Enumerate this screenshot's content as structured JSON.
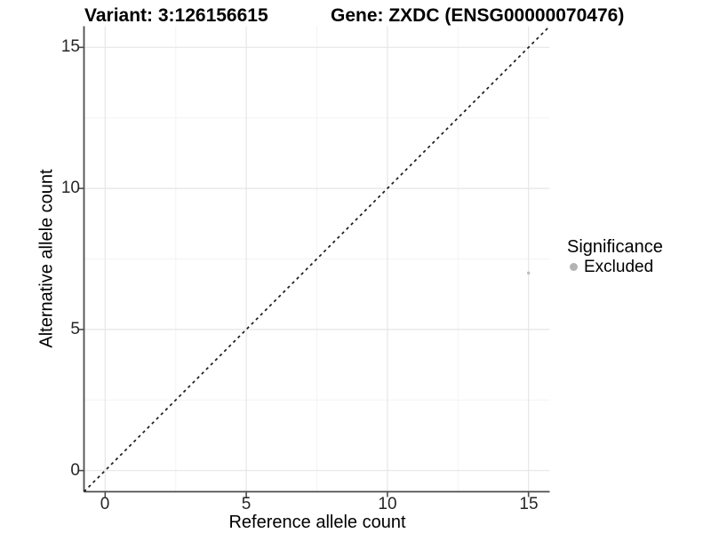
{
  "figure": {
    "title_left": "Variant: 3:126156615",
    "title_right": "Gene: ZXDC (ENSG00000070476)"
  },
  "chart_data": {
    "type": "scatter",
    "title": "Variant: 3:126156615   Gene: ZXDC (ENSG00000070476)",
    "xlabel": "Reference allele count",
    "ylabel": "Alternative allele count",
    "xticks": [
      "0",
      "5",
      "10",
      "15"
    ],
    "yticks": [
      "0",
      "5",
      "10",
      "15"
    ],
    "xtick_values": [
      0,
      5,
      10,
      15
    ],
    "ytick_values": [
      0,
      5,
      10,
      15
    ],
    "xlim": [
      -0.75,
      15.75
    ],
    "ylim": [
      -0.75,
      15.75
    ],
    "grid": {
      "major": true,
      "minor": true,
      "major_color": "#e6e6e6",
      "minor_color": "#f3f3f3"
    },
    "background": "#ffffff",
    "axis_line_color": "#4d4d4d",
    "reference_line": {
      "slope": 1,
      "intercept": 0,
      "style": "dashed",
      "color": "#1a1a1a"
    },
    "series": [
      {
        "name": "Excluded",
        "color": "#bdbdbd",
        "points": [
          {
            "x": 15,
            "y": 7
          }
        ]
      }
    ],
    "legend": {
      "title": "Significance",
      "position": "right",
      "items": [
        {
          "label": "Excluded",
          "color": "#b3b3b3"
        }
      ]
    }
  }
}
